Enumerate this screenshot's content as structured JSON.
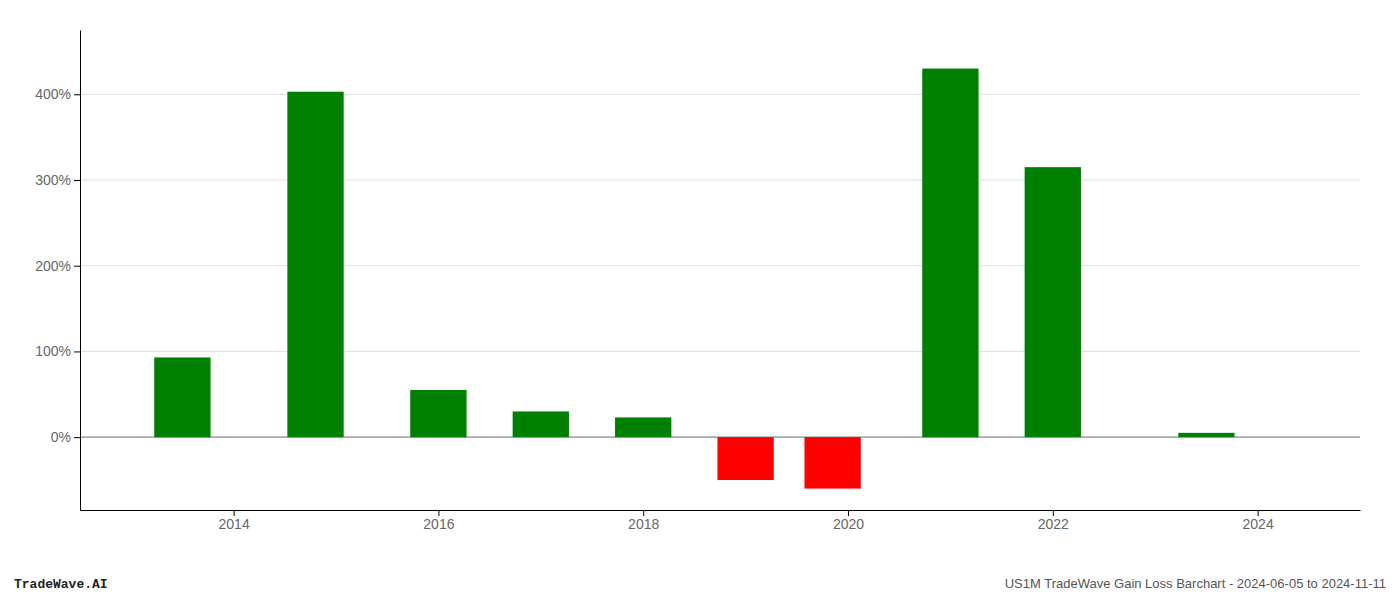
{
  "chart_data": {
    "type": "bar",
    "x": [
      2013.5,
      2014.8,
      2016.0,
      2017.0,
      2018.0,
      2019.0,
      2019.85,
      2021.0,
      2022.0,
      2023.5
    ],
    "values": [
      0.93,
      4.03,
      0.55,
      0.3,
      0.23,
      -0.5,
      -0.6,
      4.3,
      3.15,
      0.05
    ],
    "colors": [
      "#008000",
      "#008000",
      "#008000",
      "#008000",
      "#008000",
      "#ff0000",
      "#ff0000",
      "#008000",
      "#008000",
      "#008000"
    ],
    "xlim": [
      2012.5,
      2025.0
    ],
    "ylim": [
      -0.85,
      4.75
    ],
    "xticks": [
      2014,
      2016,
      2018,
      2020,
      2022,
      2024
    ],
    "yticks": [
      {
        "value": 0,
        "label": "0%"
      },
      {
        "value": 1,
        "label": "100%"
      },
      {
        "value": 2,
        "label": "200%"
      },
      {
        "value": 3,
        "label": "300%"
      },
      {
        "value": 4,
        "label": "400%"
      }
    ],
    "grid": "y",
    "annotations": [
      "TradeWave.AI",
      "US1M TradeWave Gain Loss Barchart - 2024-06-05 to 2024-11-11"
    ]
  }
}
